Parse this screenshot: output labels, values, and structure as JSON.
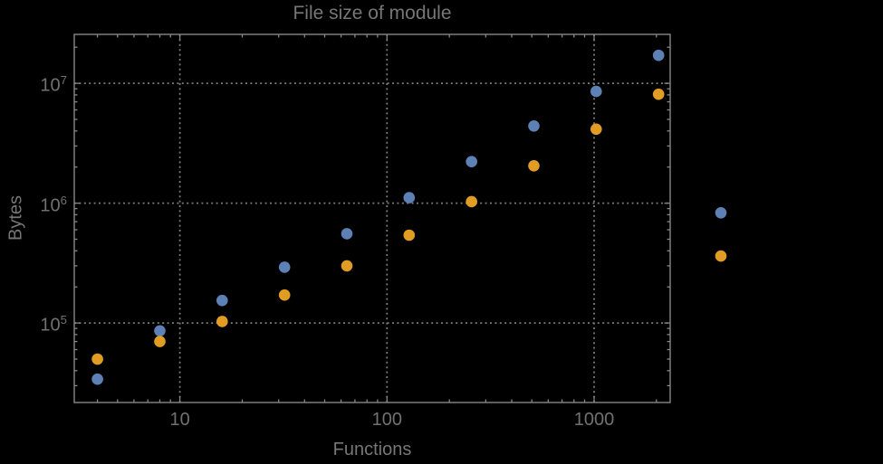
{
  "chart_data": {
    "type": "scatter",
    "title": "File size of module",
    "xlabel": "Functions",
    "ylabel": "Bytes",
    "x_scale": "log",
    "y_scale": "log",
    "xlim": [
      3.09,
      2330
    ],
    "ylim": [
      21700,
      25600000
    ],
    "x_major_ticks": [
      10,
      100,
      1000
    ],
    "x_major_tick_labels": [
      "10",
      "100",
      "1000"
    ],
    "y_major_ticks": [
      100000,
      1000000,
      10000000
    ],
    "y_major_tick_labels": [
      "10^5",
      "10^6",
      "10^7"
    ],
    "grid": "dotted gridlines at major decade ticks; framed box with logarithmic minor ticks on all four edges",
    "legend": "none",
    "note": "last pair of points (x=4096) falls outside the plot frame on the right",
    "x": [
      4,
      8,
      16,
      32,
      64,
      128,
      256,
      512,
      1024,
      2048,
      4096
    ],
    "series": [
      {
        "name": "blue",
        "color": "#5E81B5",
        "values": [
          34000,
          86000,
          154000,
          292000,
          556000,
          1110000,
          2220000,
          4400000,
          8550000,
          17100000,
          830000
        ]
      },
      {
        "name": "orange",
        "color": "#E19C24",
        "values": [
          50000,
          70000,
          103000,
          171000,
          300000,
          540000,
          1030000,
          2050000,
          4140000,
          8100000,
          362000
        ]
      }
    ],
    "colors": {
      "background": "#000000",
      "frame": "#868686",
      "grid": "#7a7a7a",
      "text": "#767676"
    }
  }
}
